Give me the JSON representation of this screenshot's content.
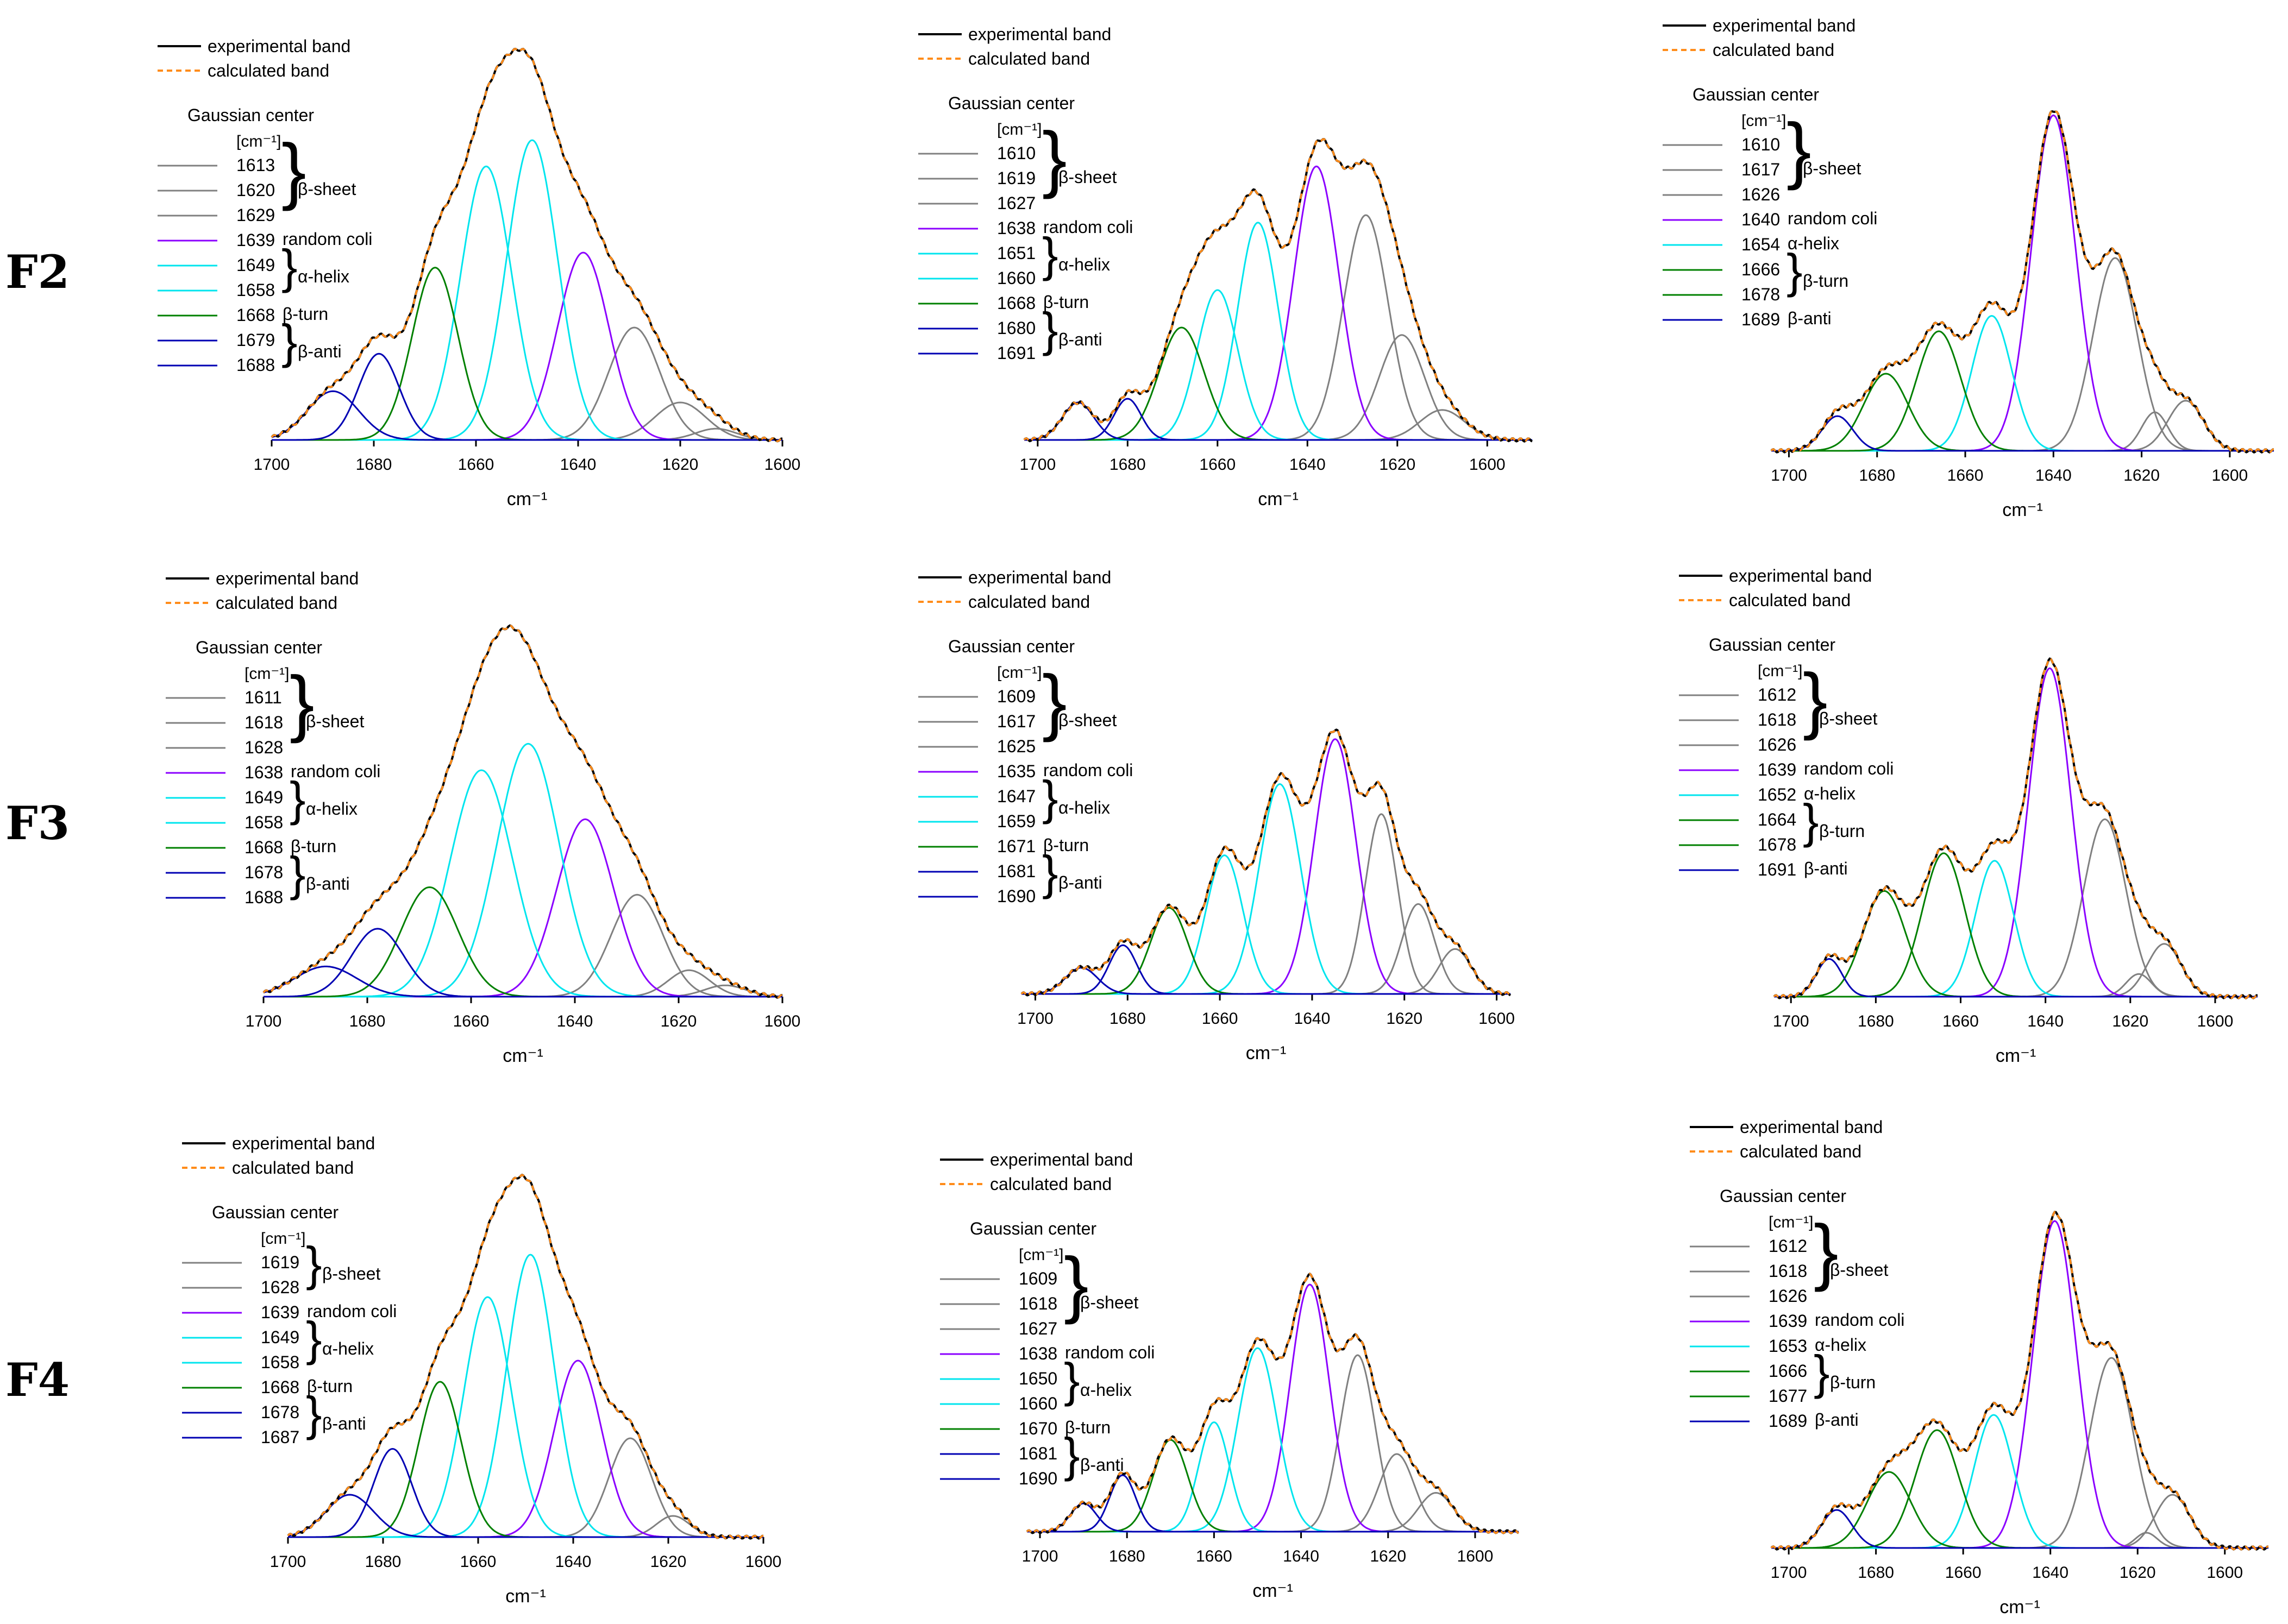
{
  "figure": {
    "row_labels": [
      "F2",
      "F3",
      "F4"
    ],
    "legend": {
      "experimental": "experimental band",
      "calculated": "calculated band",
      "gaussian_title": "Gaussian center",
      "unit": "[cm⁻¹]"
    },
    "colors": {
      "experimental": "#000000",
      "calculated": "#ff8c1a",
      "beta_sheet": "#808080",
      "random_coil": "#8b00ff",
      "alpha_helix": "#00e5ee",
      "beta_turn": "#008000",
      "beta_anti": "#0000b3"
    }
  },
  "chart_data": [
    {
      "id": "F2-1",
      "type": "line",
      "xlabel": "cm⁻¹",
      "xlim": [
        1700,
        1600
      ],
      "xticks": [
        "1700",
        "1680",
        "1660",
        "1640",
        "1620",
        "1600"
      ],
      "series": [
        {
          "name": "experimental band",
          "kind": "envelope"
        },
        {
          "name": "calculated band",
          "kind": "envelope"
        },
        {
          "center": 1613,
          "label": "1613",
          "group": "β-sheet",
          "amp": 0.03,
          "w": 4
        },
        {
          "center": 1620,
          "label": "1620",
          "group": "β-sheet",
          "amp": 0.1,
          "w": 5
        },
        {
          "center": 1629,
          "label": "1629",
          "group": "β-sheet",
          "amp": 0.3,
          "w": 5
        },
        {
          "center": 1639,
          "label": "1639",
          "group": "random coli",
          "amp": 0.5,
          "w": 5
        },
        {
          "center": 1649,
          "label": "1649",
          "group": "α-helix",
          "amp": 0.8,
          "w": 5
        },
        {
          "center": 1658,
          "label": "1658",
          "group": "α-helix",
          "amp": 0.73,
          "w": 5
        },
        {
          "center": 1668,
          "label": "1668",
          "group": "β-turn",
          "amp": 0.46,
          "w": 4.5
        },
        {
          "center": 1679,
          "label": "1679",
          "group": "β-anti",
          "amp": 0.23,
          "w": 4
        },
        {
          "center": 1688,
          "label": "1688",
          "group": "β-anti",
          "amp": 0.13,
          "w": 5
        }
      ]
    },
    {
      "id": "F2-2",
      "type": "line",
      "xlabel": "cm⁻¹",
      "xlim": [
        1703,
        1590
      ],
      "xticks": [
        "1700",
        "1680",
        "1660",
        "1640",
        "1620",
        "1600"
      ],
      "series": [
        {
          "name": "experimental band",
          "kind": "envelope"
        },
        {
          "name": "calculated band",
          "kind": "envelope"
        },
        {
          "center": 1610,
          "label": "1610",
          "group": "β-sheet",
          "amp": 0.08,
          "w": 5
        },
        {
          "center": 1619,
          "label": "1619",
          "group": "β-sheet",
          "amp": 0.28,
          "w": 5
        },
        {
          "center": 1627,
          "label": "1627",
          "group": "β-sheet",
          "amp": 0.6,
          "w": 5
        },
        {
          "center": 1638,
          "label": "1638",
          "group": "random coli",
          "amp": 0.73,
          "w": 5
        },
        {
          "center": 1651,
          "label": "1651",
          "group": "α-helix",
          "amp": 0.58,
          "w": 4.5
        },
        {
          "center": 1660,
          "label": "1660",
          "group": "α-helix",
          "amp": 0.4,
          "w": 4.5
        },
        {
          "center": 1668,
          "label": "1668",
          "group": "β-turn",
          "amp": 0.3,
          "w": 5
        },
        {
          "center": 1680,
          "label": "1680",
          "group": "β-anti",
          "amp": 0.11,
          "w": 3
        },
        {
          "center": 1691,
          "label": "1691",
          "group": "β-anti",
          "amp": 0.1,
          "w": 3.5
        }
      ]
    },
    {
      "id": "F2-3",
      "type": "line",
      "xlabel": "cm⁻¹",
      "xlim": [
        1704,
        1590
      ],
      "xticks": [
        "1700",
        "1680",
        "1660",
        "1640",
        "1620",
        "1600"
      ],
      "series": [
        {
          "name": "experimental band",
          "kind": "envelope"
        },
        {
          "name": "calculated band",
          "kind": "envelope"
        },
        {
          "center": 1610,
          "label": "1610",
          "group": "β-sheet",
          "amp": 0.13,
          "w": 4
        },
        {
          "center": 1617,
          "label": "1617",
          "group": "β-sheet",
          "amp": 0.1,
          "w": 3
        },
        {
          "center": 1626,
          "label": "1626",
          "group": "β-sheet",
          "amp": 0.5,
          "w": 5
        },
        {
          "center": 1640,
          "label": "1640",
          "group": "random coli",
          "amp": 0.87,
          "w": 5
        },
        {
          "center": 1654,
          "label": "1654",
          "group": "α-helix",
          "amp": 0.35,
          "w": 4.5
        },
        {
          "center": 1666,
          "label": "1666",
          "group": "β-turn",
          "amp": 0.31,
          "w": 5
        },
        {
          "center": 1678,
          "label": "1678",
          "group": "β-turn",
          "amp": 0.2,
          "w": 5
        },
        {
          "center": 1689,
          "label": "1689",
          "group": "β-anti",
          "amp": 0.09,
          "w": 3.5
        }
      ]
    },
    {
      "id": "F3-1",
      "type": "line",
      "xlabel": "cm⁻¹",
      "xlim": [
        1700,
        1600
      ],
      "xticks": [
        "1700",
        "1680",
        "1660",
        "1640",
        "1620",
        "1600"
      ],
      "series": [
        {
          "name": "experimental band",
          "kind": "envelope"
        },
        {
          "name": "calculated band",
          "kind": "envelope"
        },
        {
          "center": 1611,
          "label": "1611",
          "group": "β-sheet",
          "amp": 0.03,
          "w": 4
        },
        {
          "center": 1618,
          "label": "1618",
          "group": "β-sheet",
          "amp": 0.07,
          "w": 4
        },
        {
          "center": 1628,
          "label": "1628",
          "group": "β-sheet",
          "amp": 0.27,
          "w": 5
        },
        {
          "center": 1638,
          "label": "1638",
          "group": "random coli",
          "amp": 0.47,
          "w": 5.5
        },
        {
          "center": 1649,
          "label": "1649",
          "group": "α-helix",
          "amp": 0.67,
          "w": 6
        },
        {
          "center": 1658,
          "label": "1658",
          "group": "α-helix",
          "amp": 0.6,
          "w": 6
        },
        {
          "center": 1668,
          "label": "1668",
          "group": "β-turn",
          "amp": 0.29,
          "w": 5.5
        },
        {
          "center": 1678,
          "label": "1678",
          "group": "β-anti",
          "amp": 0.18,
          "w": 5
        },
        {
          "center": 1688,
          "label": "1688",
          "group": "β-anti",
          "amp": 0.08,
          "w": 6
        }
      ]
    },
    {
      "id": "F3-2",
      "type": "line",
      "xlabel": "cm⁻¹",
      "xlim": [
        1703,
        1597
      ],
      "xticks": [
        "1700",
        "1680",
        "1660",
        "1640",
        "1620",
        "1600"
      ],
      "series": [
        {
          "name": "experimental band",
          "kind": "envelope"
        },
        {
          "name": "calculated band",
          "kind": "envelope"
        },
        {
          "center": 1609,
          "label": "1609",
          "group": "β-sheet",
          "amp": 0.12,
          "w": 3.5
        },
        {
          "center": 1617,
          "label": "1617",
          "group": "β-sheet",
          "amp": 0.24,
          "w": 3.5
        },
        {
          "center": 1625,
          "label": "1625",
          "group": "β-sheet",
          "amp": 0.48,
          "w": 3.5
        },
        {
          "center": 1635,
          "label": "1635",
          "group": "random coli",
          "amp": 0.68,
          "w": 4.5
        },
        {
          "center": 1647,
          "label": "1647",
          "group": "α-helix",
          "amp": 0.56,
          "w": 4.5
        },
        {
          "center": 1659,
          "label": "1659",
          "group": "α-helix",
          "amp": 0.37,
          "w": 4
        },
        {
          "center": 1671,
          "label": "1671",
          "group": "β-turn",
          "amp": 0.23,
          "w": 4
        },
        {
          "center": 1681,
          "label": "1681",
          "group": "β-anti",
          "amp": 0.13,
          "w": 3
        },
        {
          "center": 1690,
          "label": "1690",
          "group": "β-anti",
          "amp": 0.07,
          "w": 3.5
        }
      ]
    },
    {
      "id": "F3-3",
      "type": "line",
      "xlabel": "cm⁻¹",
      "xlim": [
        1704,
        1590
      ],
      "xticks": [
        "1700",
        "1680",
        "1660",
        "1640",
        "1620",
        "1600"
      ],
      "series": [
        {
          "name": "experimental band",
          "kind": "envelope"
        },
        {
          "name": "calculated band",
          "kind": "envelope"
        },
        {
          "center": 1612,
          "label": "1612",
          "group": "β-sheet",
          "amp": 0.14,
          "w": 4
        },
        {
          "center": 1618,
          "label": "1618",
          "group": "β-sheet",
          "amp": 0.06,
          "w": 3
        },
        {
          "center": 1626,
          "label": "1626",
          "group": "β-sheet",
          "amp": 0.47,
          "w": 5
        },
        {
          "center": 1639,
          "label": "1639",
          "group": "random coli",
          "amp": 0.87,
          "w": 5
        },
        {
          "center": 1652,
          "label": "1652",
          "group": "α-helix",
          "amp": 0.36,
          "w": 4.5
        },
        {
          "center": 1664,
          "label": "1664",
          "group": "β-turn",
          "amp": 0.38,
          "w": 5
        },
        {
          "center": 1678,
          "label": "1678",
          "group": "β-turn",
          "amp": 0.28,
          "w": 5
        },
        {
          "center": 1691,
          "label": "1691",
          "group": "β-anti",
          "amp": 0.1,
          "w": 3
        }
      ]
    },
    {
      "id": "F4-1",
      "type": "line",
      "xlabel": "cm⁻¹",
      "xlim": [
        1700,
        1600
      ],
      "xticks": [
        "1700",
        "1680",
        "1660",
        "1640",
        "1620",
        "1600"
      ],
      "series": [
        {
          "name": "experimental band",
          "kind": "envelope"
        },
        {
          "name": "calculated band",
          "kind": "envelope"
        },
        {
          "center": 1619,
          "label": "1619",
          "group": "β-sheet",
          "amp": 0.06,
          "w": 3.5
        },
        {
          "center": 1628,
          "label": "1628",
          "group": "β-sheet",
          "amp": 0.28,
          "w": 4.5
        },
        {
          "center": 1639,
          "label": "1639",
          "group": "random coli",
          "amp": 0.5,
          "w": 5
        },
        {
          "center": 1649,
          "label": "1649",
          "group": "α-helix",
          "amp": 0.8,
          "w": 5
        },
        {
          "center": 1658,
          "label": "1658",
          "group": "α-helix",
          "amp": 0.68,
          "w": 5
        },
        {
          "center": 1668,
          "label": "1668",
          "group": "β-turn",
          "amp": 0.44,
          "w": 4.5
        },
        {
          "center": 1678,
          "label": "1678",
          "group": "β-anti",
          "amp": 0.25,
          "w": 4
        },
        {
          "center": 1687,
          "label": "1687",
          "group": "β-anti",
          "amp": 0.12,
          "w": 5
        }
      ]
    },
    {
      "id": "F4-2",
      "type": "line",
      "xlabel": "cm⁻¹",
      "xlim": [
        1703,
        1590
      ],
      "xticks": [
        "1700",
        "1680",
        "1660",
        "1640",
        "1620",
        "1600"
      ],
      "series": [
        {
          "name": "experimental band",
          "kind": "envelope"
        },
        {
          "name": "calculated band",
          "kind": "envelope"
        },
        {
          "center": 1609,
          "label": "1609",
          "group": "β-sheet",
          "amp": 0.11,
          "w": 4
        },
        {
          "center": 1618,
          "label": "1618",
          "group": "β-sheet",
          "amp": 0.22,
          "w": 4
        },
        {
          "center": 1627,
          "label": "1627",
          "group": "β-sheet",
          "amp": 0.5,
          "w": 4
        },
        {
          "center": 1638,
          "label": "1638",
          "group": "random coli",
          "amp": 0.7,
          "w": 4.5
        },
        {
          "center": 1650,
          "label": "1650",
          "group": "α-helix",
          "amp": 0.52,
          "w": 4.5
        },
        {
          "center": 1660,
          "label": "1660",
          "group": "α-helix",
          "amp": 0.31,
          "w": 3.5
        },
        {
          "center": 1670,
          "label": "1670",
          "group": "β-turn",
          "amp": 0.26,
          "w": 4
        },
        {
          "center": 1681,
          "label": "1681",
          "group": "β-anti",
          "amp": 0.16,
          "w": 3
        },
        {
          "center": 1690,
          "label": "1690",
          "group": "β-anti",
          "amp": 0.08,
          "w": 3
        }
      ]
    },
    {
      "id": "F4-3",
      "type": "line",
      "xlabel": "cm⁻¹",
      "xlim": [
        1704,
        1590
      ],
      "xticks": [
        "1700",
        "1680",
        "1660",
        "1640",
        "1620",
        "1600"
      ],
      "series": [
        {
          "name": "experimental band",
          "kind": "envelope"
        },
        {
          "name": "calculated band",
          "kind": "envelope"
        },
        {
          "center": 1612,
          "label": "1612",
          "group": "β-sheet",
          "amp": 0.14,
          "w": 4
        },
        {
          "center": 1618,
          "label": "1618",
          "group": "β-sheet",
          "amp": 0.04,
          "w": 2.5
        },
        {
          "center": 1626,
          "label": "1626",
          "group": "β-sheet",
          "amp": 0.5,
          "w": 5
        },
        {
          "center": 1639,
          "label": "1639",
          "group": "random coli",
          "amp": 0.86,
          "w": 5
        },
        {
          "center": 1653,
          "label": "1653",
          "group": "α-helix",
          "amp": 0.35,
          "w": 4.5
        },
        {
          "center": 1666,
          "label": "1666",
          "group": "β-turn",
          "amp": 0.31,
          "w": 5
        },
        {
          "center": 1677,
          "label": "1677",
          "group": "β-turn",
          "amp": 0.2,
          "w": 5
        },
        {
          "center": 1689,
          "label": "1689",
          "group": "β-anti",
          "amp": 0.1,
          "w": 3.5
        }
      ]
    }
  ]
}
